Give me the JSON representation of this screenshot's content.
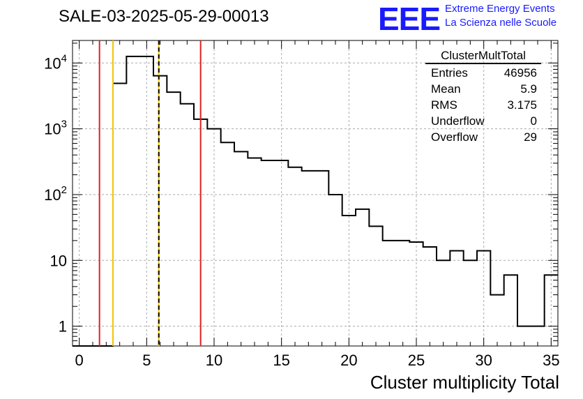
{
  "header": {
    "title": "SALE-03-2025-05-29-00013",
    "logo_text": "EEE",
    "logo_line1": "Extreme Energy Events",
    "logo_line2": "La Scienza nelle Scuole"
  },
  "stats_box": {
    "name": "ClusterMultTotal",
    "rows": [
      {
        "label": "Entries",
        "value": "46956"
      },
      {
        "label": "Mean",
        "value": "5.9"
      },
      {
        "label": "RMS",
        "value": "3.175"
      },
      {
        "label": "Underflow",
        "value": "0"
      },
      {
        "label": "Overflow",
        "value": "29"
      }
    ]
  },
  "colors": {
    "red_line": "#e02020",
    "yellow_line": "#f2c400",
    "logo": "#1a1aff"
  },
  "chart_data": {
    "type": "histogram",
    "title": "SALE-03-2025-05-29-00013",
    "xlabel": "Cluster multiplicity Total",
    "ylabel": "",
    "xlim": [
      -0.5,
      35.5
    ],
    "ylim": [
      0.5,
      22000
    ],
    "yscale": "log",
    "grid": true,
    "x_ticks": [
      0,
      5,
      10,
      15,
      20,
      25,
      30,
      35
    ],
    "y_ticks": [
      {
        "value": 1,
        "base": "1",
        "exp": ""
      },
      {
        "value": 10,
        "base": "10",
        "exp": ""
      },
      {
        "value": 100,
        "base": "10",
        "exp": "2"
      },
      {
        "value": 1000,
        "base": "10",
        "exp": "3"
      },
      {
        "value": 10000,
        "base": "10",
        "exp": "4"
      }
    ],
    "bin_edges_start": -0.5,
    "bin_width": 1,
    "values": [
      0,
      0,
      0,
      4900,
      12600,
      12600,
      6400,
      3600,
      2400,
      1400,
      1000,
      620,
      450,
      360,
      330,
      330,
      260,
      230,
      230,
      100,
      48,
      60,
      33,
      20,
      20,
      19,
      16,
      10,
      14,
      10,
      14,
      3,
      6,
      1,
      1,
      6
    ],
    "vertical_lines": [
      {
        "x": 1.5,
        "color": "red",
        "style": "solid"
      },
      {
        "x": 2.5,
        "color": "yellow",
        "style": "solid"
      },
      {
        "x": 5.9,
        "color": "yellow",
        "style": "solid"
      },
      {
        "x": 5.9,
        "color": "black",
        "style": "dashed"
      },
      {
        "x": 9.0,
        "color": "red",
        "style": "solid"
      }
    ]
  }
}
